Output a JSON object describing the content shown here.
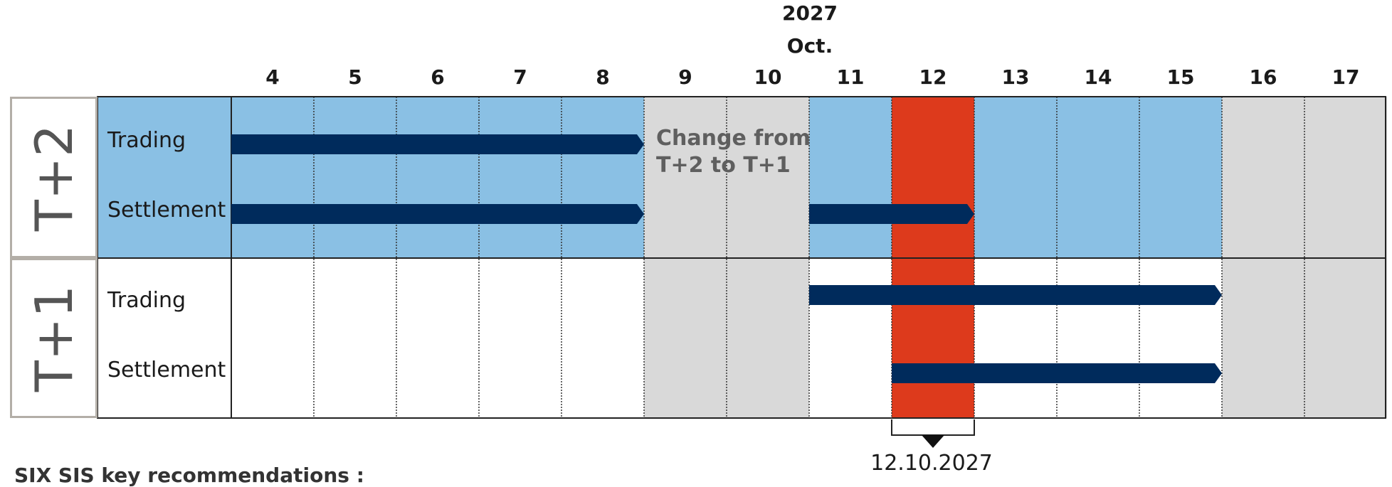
{
  "header": {
    "year": "2027",
    "month": "Oct."
  },
  "days": [
    "4",
    "5",
    "6",
    "7",
    "8",
    "9",
    "10",
    "11",
    "12",
    "13",
    "14",
    "15",
    "16",
    "17"
  ],
  "sections": [
    {
      "name": "T+2",
      "rows": [
        {
          "label": "Trading",
          "bars": [
            {
              "start": "4",
              "end": "8"
            }
          ]
        },
        {
          "label": "Settlement",
          "bars": [
            {
              "start": "4",
              "end": "8"
            },
            {
              "start": "11",
              "end": "12"
            }
          ]
        }
      ]
    },
    {
      "name": "T+1",
      "rows": [
        {
          "label": "Trading",
          "bars": [
            {
              "start": "11",
              "end": "15"
            }
          ]
        },
        {
          "label": "Settlement",
          "bars": [
            {
              "start": "12",
              "end": "15"
            }
          ]
        }
      ]
    }
  ],
  "non_trading_days": [
    "9",
    "10",
    "16",
    "17"
  ],
  "highlight_day": "12",
  "transition_note": "Change from T+2 to T+1",
  "cutover_date_label": "12.10.2027",
  "footer_text": "SIX SIS key recommendations :",
  "colors": {
    "t2_band": "#8ac0e4",
    "non_trading": "#d9d9d9",
    "highlight": "#dd3a1c",
    "bar": "#002b5c",
    "label_border": "#b3aea7"
  }
}
